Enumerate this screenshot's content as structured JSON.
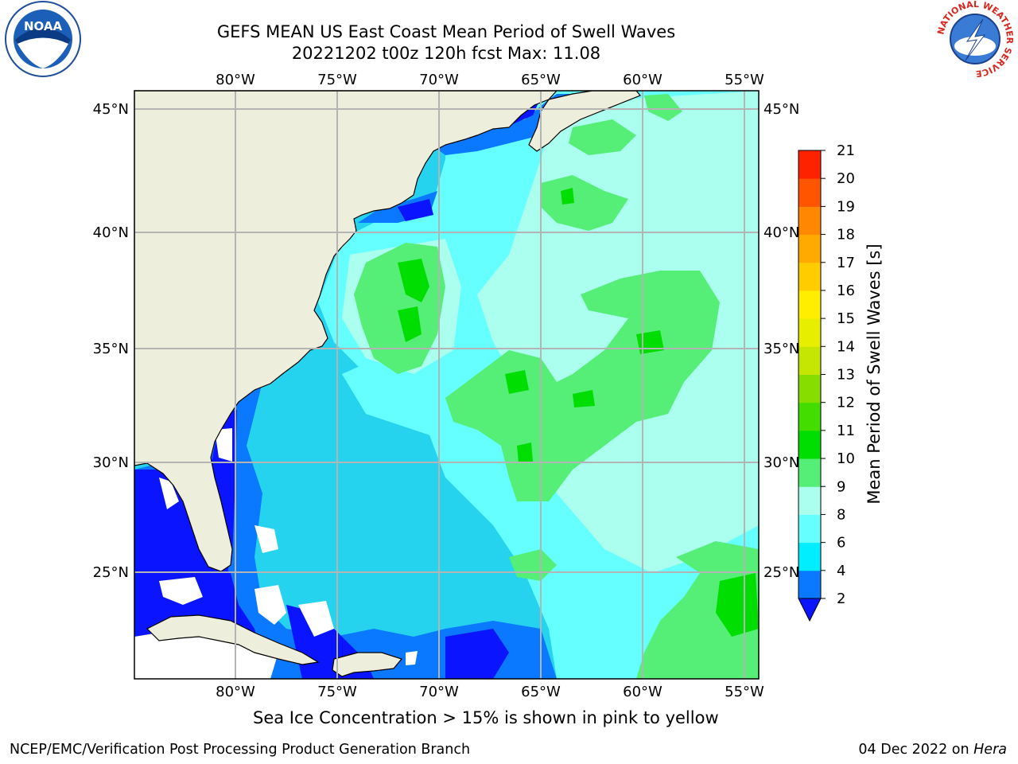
{
  "header": {
    "title": "GEFS MEAN US East Coast Mean Period of Swell Waves",
    "subtitle": "20221202 t00z 120h fcst   Max: 11.08"
  },
  "map": {
    "lon_labels": [
      "80°W",
      "75°W",
      "70°W",
      "65°W",
      "60°W",
      "55°W"
    ],
    "lat_labels_left": [
      "45°N",
      "40°N",
      "35°N",
      "30°N",
      "25°N"
    ],
    "lat_labels_right": [
      "45°N",
      "40°N",
      "35°N",
      "30°N",
      "25°N"
    ],
    "colors": {
      "land": "#eeeedd",
      "ocean_base": "#26d3ee",
      "gridline": "#b4b4b4"
    }
  },
  "colorbar": {
    "label": "Mean Period of Swell Waves [s]",
    "ticks": [
      "2",
      "4",
      "6",
      "8",
      "9",
      "10",
      "11",
      "12",
      "13",
      "14",
      "15",
      "16",
      "17",
      "18",
      "19",
      "20",
      "21"
    ],
    "colors": [
      "#0a78ff",
      "#00eeff",
      "#66ffff",
      "#aaffee",
      "#55ee77",
      "#00dd00",
      "#44dd00",
      "#88dd00",
      "#c4e600",
      "#e8ee00",
      "#ffee00",
      "#ffcc00",
      "#ffaa00",
      "#ff8800",
      "#ff5500",
      "#ff2200"
    ],
    "under_color": "#0a14ff"
  },
  "footer": {
    "note": "Sea Ice Concentration > 15% is shown in pink to yellow",
    "credit": "NCEP/EMC/Verification Post Processing Product Generation Branch",
    "date": "04 Dec 2022 on",
    "machine": "Hera"
  },
  "logos": {
    "noaa_text": "NOAA",
    "nws_ring_text": "NATIONAL WEATHER SERVICE"
  }
}
